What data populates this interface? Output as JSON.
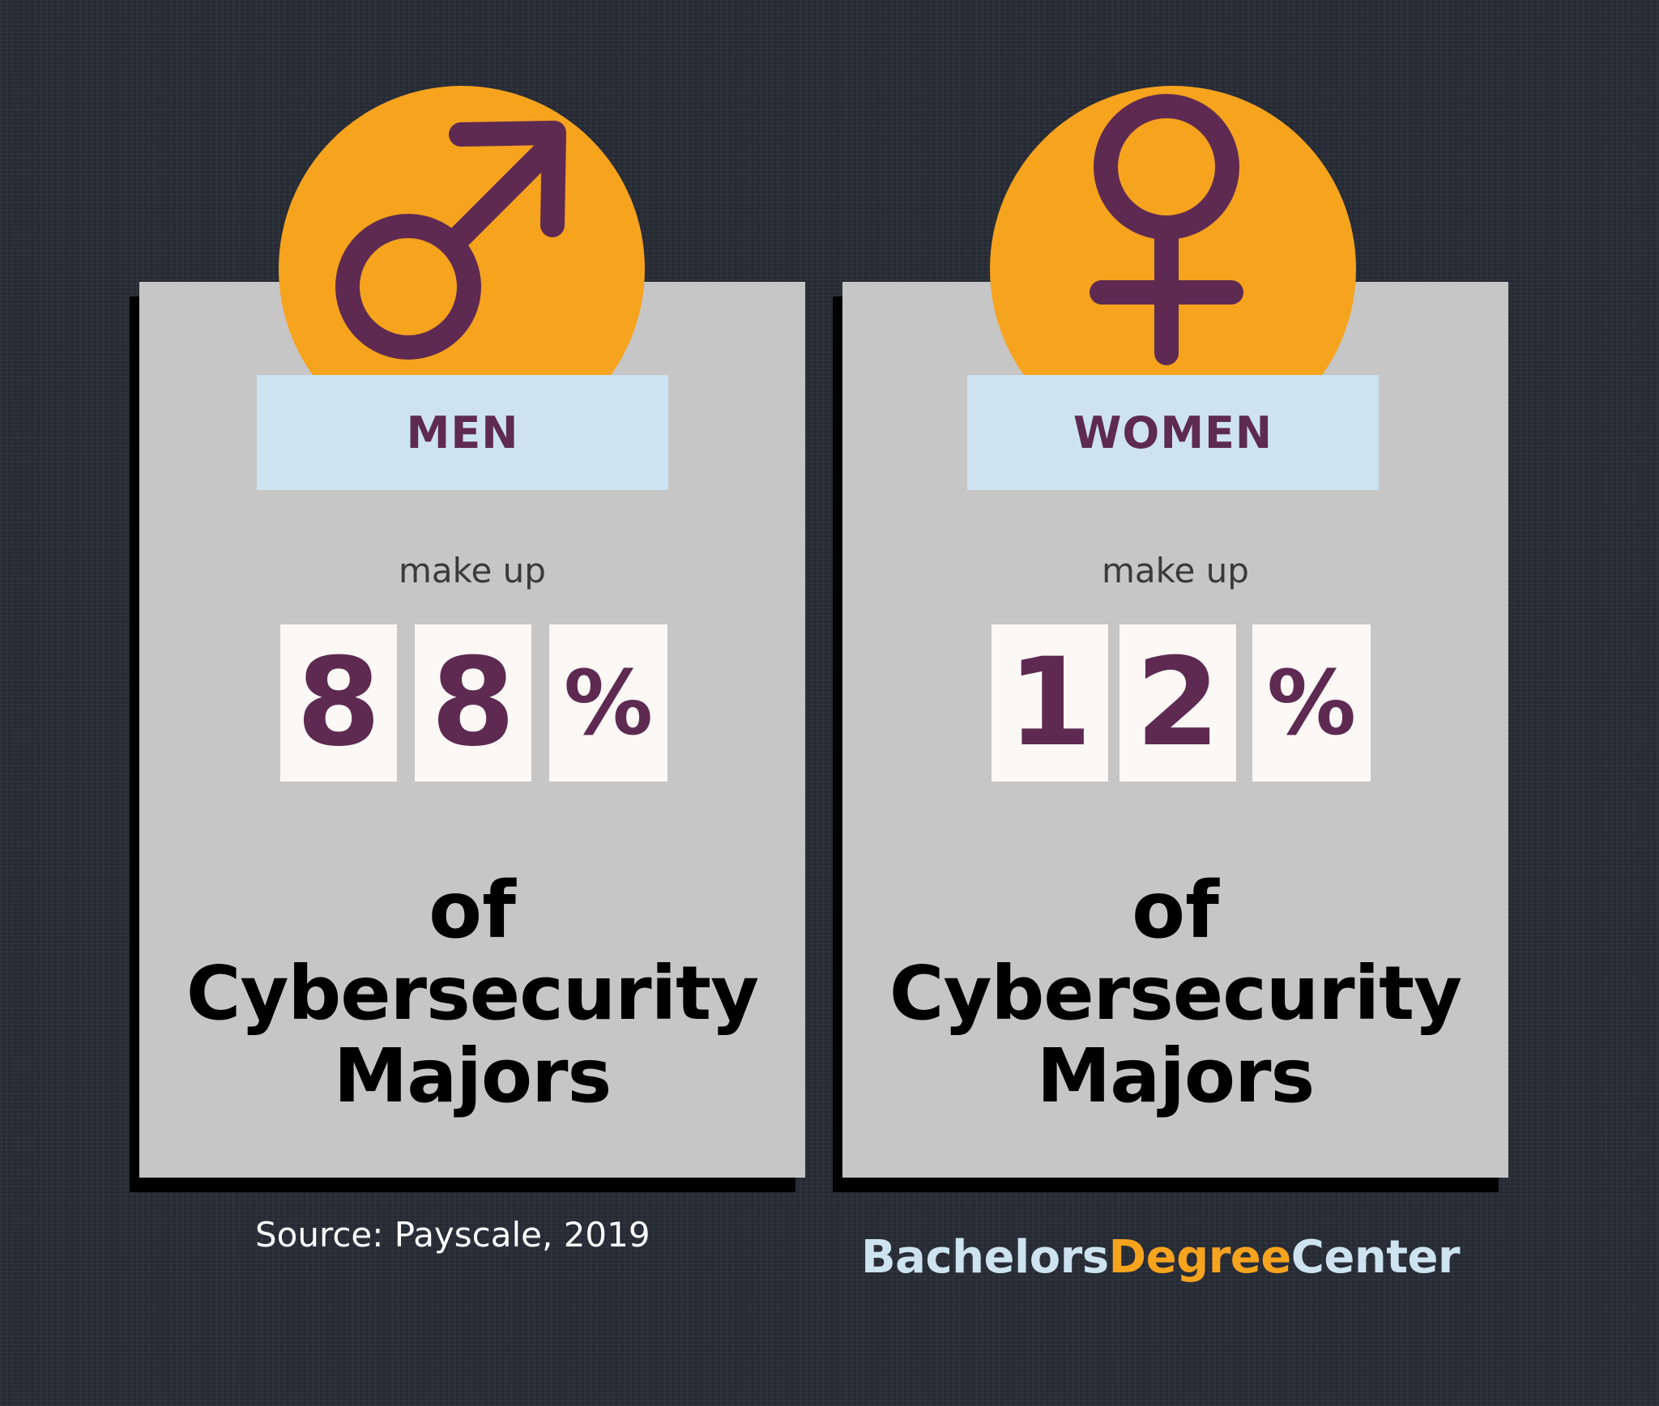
{
  "cards": [
    {
      "label": "MEN",
      "icon": "male-symbol-icon",
      "make_up": "make up",
      "digits": [
        "8",
        "8",
        "%"
      ],
      "percent": 88,
      "of": "of",
      "line1": "Cybersecurity",
      "line2": "Majors"
    },
    {
      "label": "WOMEN",
      "icon": "female-symbol-icon",
      "make_up": "make up",
      "digits": [
        "1",
        "2",
        "%"
      ],
      "percent": 12,
      "of": "of",
      "line1": "Cybersecurity",
      "line2": "Majors"
    }
  ],
  "source": "Source: Payscale, 2019",
  "brand": {
    "part1": "Bachelors",
    "part2": "Degree",
    "part3": "Center"
  },
  "colors": {
    "background": "#262b35",
    "card": "#c6c6c6",
    "circle": "#f6a31e",
    "accent_purple": "#5e2a52",
    "label_box": "#cde3f0",
    "digit_box": "#fcf8f5",
    "brand_light": "#cde3f0",
    "brand_orange": "#f6a31e"
  }
}
